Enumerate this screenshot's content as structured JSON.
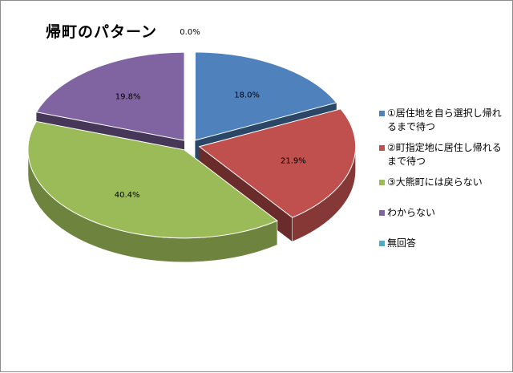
{
  "chart_data": {
    "type": "pie",
    "title": "帰町のパターン",
    "categories": [
      "①居住地を自ら選択し帰れるまで待つ",
      "②町指定地に居住し帰れるまで待つ",
      "③大熊町には戻らない",
      "わからない",
      "無回答"
    ],
    "values": [
      18.0,
      21.9,
      40.4,
      19.8,
      0.0
    ],
    "value_labels": [
      "18.0%",
      "21.9%",
      "40.4%",
      "19.8%",
      "0.0%"
    ],
    "colors": [
      "#4f81bd",
      "#c0504d",
      "#9bbb59",
      "#8064a2",
      "#4bacc6"
    ],
    "style": "3d-exploded",
    "legend_position": "right"
  }
}
